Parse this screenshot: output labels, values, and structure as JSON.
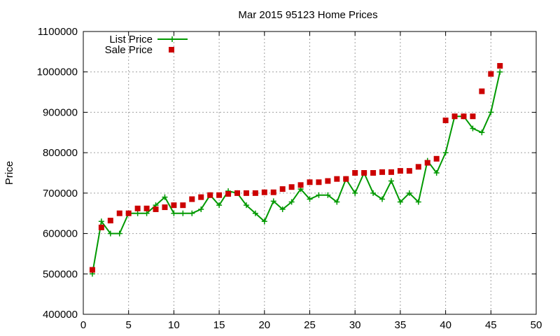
{
  "chart_data": {
    "type": "line",
    "title": "Mar 2015 95123 Home Prices",
    "xlabel": "",
    "ylabel": "Price",
    "xlim": [
      0,
      50
    ],
    "ylim": [
      400000,
      1100000
    ],
    "x_ticks": [
      0,
      5,
      10,
      15,
      20,
      25,
      30,
      35,
      40,
      45,
      50
    ],
    "y_ticks": [
      400000,
      500000,
      600000,
      700000,
      800000,
      900000,
      1000000,
      1100000
    ],
    "grid": true,
    "legend_position": "top-left",
    "series": [
      {
        "name": "List Price",
        "style": "line+cross",
        "color": "#009900",
        "x": [
          1,
          2,
          3,
          4,
          5,
          6,
          7,
          8,
          9,
          10,
          11,
          12,
          13,
          14,
          15,
          16,
          17,
          18,
          19,
          20,
          21,
          22,
          23,
          24,
          25,
          26,
          27,
          28,
          29,
          30,
          31,
          32,
          33,
          34,
          35,
          36,
          37,
          38,
          39,
          40,
          41,
          42,
          43,
          44,
          45,
          46
        ],
        "values": [
          500000,
          630000,
          600000,
          600000,
          650000,
          650000,
          650000,
          670000,
          690000,
          650000,
          650000,
          650000,
          660000,
          695000,
          670000,
          705000,
          700000,
          670000,
          650000,
          630000,
          680000,
          660000,
          678000,
          710000,
          685000,
          695000,
          695000,
          678000,
          735000,
          700000,
          750000,
          700000,
          685000,
          730000,
          678000,
          700000,
          678000,
          780000,
          750000,
          800000,
          890000,
          890000,
          860000,
          850000,
          900000,
          1000000
        ]
      },
      {
        "name": "Sale Price",
        "style": "square",
        "color": "#cc0000",
        "x": [
          1,
          2,
          3,
          4,
          5,
          6,
          7,
          8,
          9,
          10,
          11,
          12,
          13,
          14,
          15,
          16,
          17,
          18,
          19,
          20,
          21,
          22,
          23,
          24,
          25,
          26,
          27,
          28,
          29,
          30,
          31,
          32,
          33,
          34,
          35,
          36,
          37,
          38,
          39,
          40,
          41,
          42,
          43,
          44,
          45,
          46
        ],
        "values": [
          510000,
          615000,
          632000,
          650000,
          650000,
          662000,
          662000,
          660000,
          665000,
          670000,
          670000,
          685000,
          690000,
          695000,
          695000,
          698000,
          700000,
          700000,
          700000,
          702000,
          702000,
          710000,
          715000,
          720000,
          727000,
          727000,
          730000,
          735000,
          735000,
          750000,
          750000,
          750000,
          752000,
          752000,
          755000,
          755000,
          765000,
          775000,
          785000,
          880000,
          890000,
          890000,
          890000,
          952000,
          995000,
          1015000
        ]
      }
    ]
  }
}
